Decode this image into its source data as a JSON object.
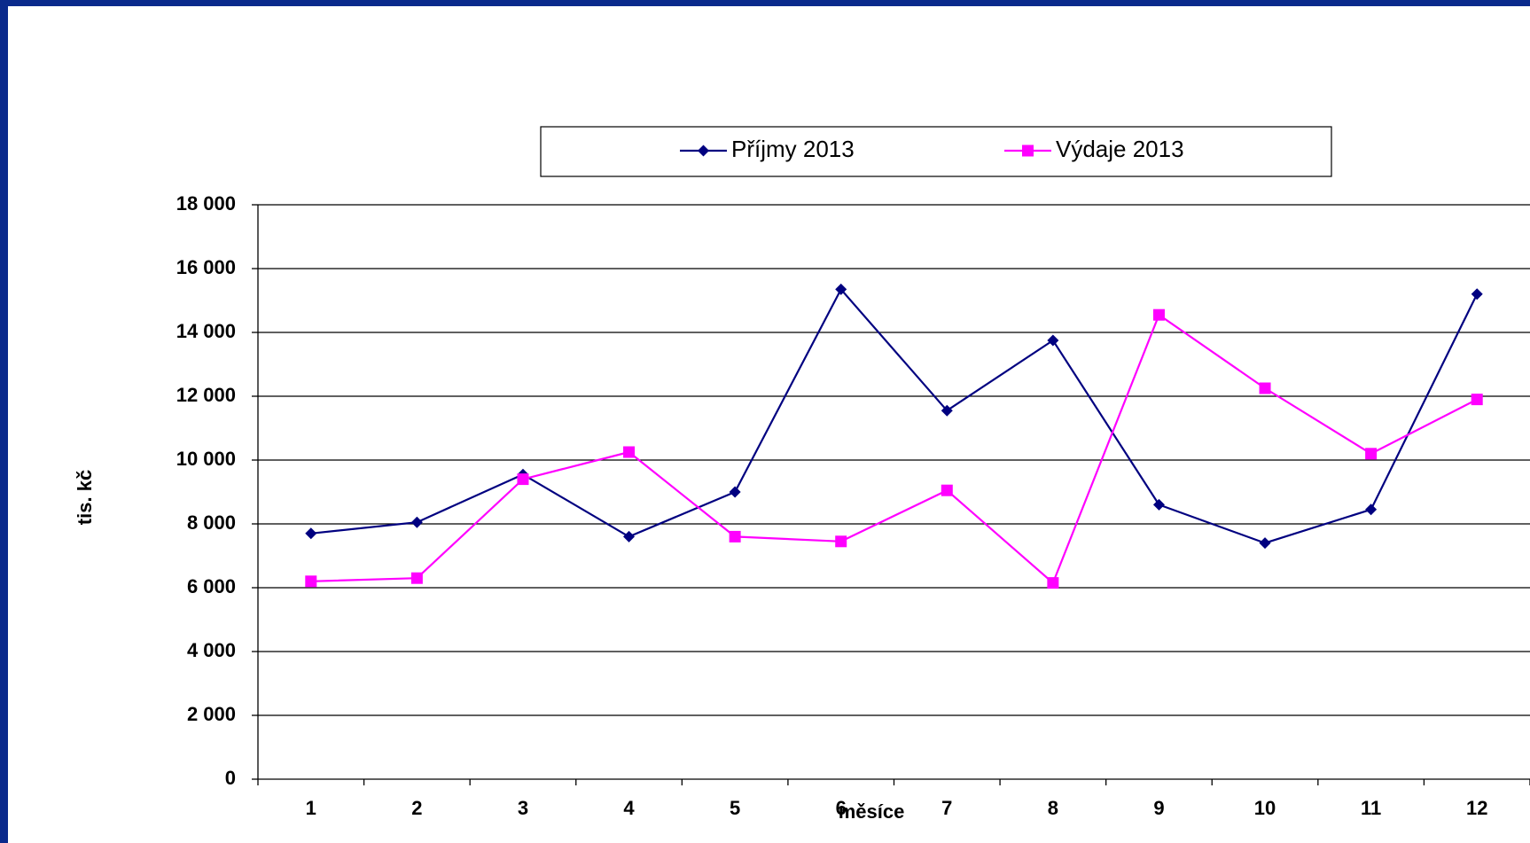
{
  "chart_data": {
    "type": "line",
    "x_label": "měsíce",
    "y_label": "tis. kč",
    "categories": [
      "1",
      "2",
      "3",
      "4",
      "5",
      "6",
      "7",
      "8",
      "9",
      "10",
      "11",
      "12"
    ],
    "series": [
      {
        "name": "Příjmy 2013",
        "color": "#000080",
        "marker": "diamond",
        "values": [
          7700,
          8050,
          9550,
          7600,
          9000,
          15350,
          11550,
          13750,
          8600,
          7400,
          8450,
          15200
        ]
      },
      {
        "name": "Výdaje 2013",
        "color": "#ff00ff",
        "marker": "square",
        "values": [
          6200,
          6300,
          9400,
          10250,
          7600,
          7450,
          9050,
          6150,
          14550,
          12250,
          10200,
          11900
        ]
      }
    ],
    "ylim": [
      0,
      18000
    ],
    "yticks": [
      0,
      {
        "value": 2000,
        "label": "2 000"
      },
      {
        "value": 4000,
        "label": "4 000"
      },
      {
        "value": 6000,
        "label": "6 000"
      },
      {
        "value": 8000,
        "label": "8 000"
      },
      {
        "value": 10000,
        "label": "10 000"
      },
      {
        "value": 12000,
        "label": "12 000"
      },
      {
        "value": 14000,
        "label": "14 000"
      },
      {
        "value": 16000,
        "label": "16 000"
      },
      {
        "value": 18000,
        "label": "18 000"
      }
    ],
    "grid": true,
    "legend": "top"
  }
}
